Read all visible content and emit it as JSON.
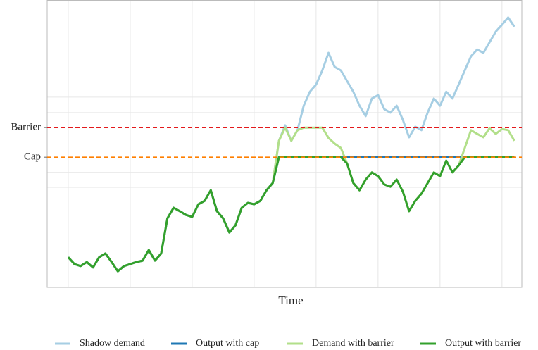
{
  "chart_data": {
    "type": "line",
    "x_label": "Time",
    "x": [
      0,
      2,
      4,
      6,
      8,
      10,
      12,
      14,
      16,
      18,
      20,
      22,
      24,
      26,
      28,
      30,
      32,
      34,
      36,
      38,
      40,
      42,
      44,
      46,
      48,
      50,
      52,
      54,
      56,
      58,
      60,
      62,
      64,
      66,
      68,
      70,
      72,
      74,
      76,
      78,
      80,
      82,
      84,
      86,
      88,
      90,
      92,
      94,
      96,
      98,
      100,
      102,
      104,
      106,
      108,
      110,
      112,
      114,
      116,
      118,
      120,
      122,
      124,
      126,
      128,
      130,
      132,
      134,
      136,
      138,
      140,
      142,
      144
    ],
    "xlim": [
      -6.8,
      146.4
    ],
    "xgrid": [
      0,
      20,
      40,
      60,
      80,
      100,
      120,
      140
    ],
    "ylim": [
      0,
      100
    ],
    "yticks": [
      {
        "value": 55.6,
        "label": "Barrier",
        "color": "#e31a1c"
      },
      {
        "value": 45.3,
        "label": "Cap",
        "color": "#ff7f00"
      }
    ],
    "ygrid": [
      66.2,
      60.8,
      40.0,
      34.8
    ],
    "grid": true,
    "legend": "bottom",
    "series": [
      {
        "name": "Shadow demand",
        "color": "#a6cee3",
        "values": [
          10.5,
          8.1,
          7.4,
          8.8,
          6.9,
          10.5,
          11.8,
          8.8,
          5.6,
          7.4,
          8.1,
          8.8,
          9.3,
          13.0,
          9.3,
          11.8,
          24.0,
          27.7,
          26.5,
          25.2,
          24.5,
          28.9,
          30.1,
          33.8,
          26.5,
          24.0,
          19.1,
          21.6,
          27.7,
          29.4,
          28.9,
          30.1,
          33.8,
          36.3,
          51.0,
          56.4,
          51.0,
          54.7,
          63.2,
          68.1,
          70.6,
          75.5,
          81.6,
          76.7,
          75.5,
          71.8,
          68.1,
          63.2,
          59.6,
          65.7,
          66.9,
          62.0,
          60.8,
          63.2,
          58.3,
          52.2,
          55.9,
          54.7,
          60.8,
          65.7,
          63.2,
          68.1,
          65.7,
          70.6,
          75.5,
          80.4,
          82.8,
          81.6,
          85.3,
          89.0,
          91.4,
          93.9,
          90.7
        ]
      },
      {
        "name": "Output with cap",
        "color": "#1f78b4",
        "values": [
          10.5,
          8.1,
          7.4,
          8.8,
          6.9,
          10.5,
          11.8,
          8.8,
          5.6,
          7.4,
          8.1,
          8.8,
          9.3,
          13.0,
          9.3,
          11.8,
          24.0,
          27.7,
          26.5,
          25.2,
          24.5,
          28.9,
          30.1,
          33.8,
          26.5,
          24.0,
          19.1,
          21.6,
          27.7,
          29.4,
          28.9,
          30.1,
          33.8,
          36.3,
          45.3,
          45.3,
          45.3,
          45.3,
          45.3,
          45.3,
          45.3,
          45.3,
          45.3,
          45.3,
          45.3,
          45.3,
          45.3,
          45.3,
          45.3,
          45.3,
          45.3,
          45.3,
          45.3,
          45.3,
          45.3,
          45.3,
          45.3,
          45.3,
          45.3,
          45.3,
          45.3,
          45.3,
          45.3,
          45.3,
          45.3,
          45.3,
          45.3,
          45.3,
          45.3,
          45.3,
          45.3,
          45.3,
          45.3
        ]
      },
      {
        "name": "Demand with barrier",
        "color": "#b2df8a",
        "values": [
          10.5,
          8.1,
          7.4,
          8.8,
          6.9,
          10.5,
          11.8,
          8.8,
          5.6,
          7.4,
          8.1,
          8.8,
          9.3,
          13.0,
          9.3,
          11.8,
          24.0,
          27.7,
          26.5,
          25.2,
          24.5,
          28.9,
          30.1,
          33.8,
          26.5,
          24.0,
          19.1,
          21.6,
          27.7,
          29.4,
          28.9,
          30.1,
          33.8,
          36.3,
          51.0,
          55.6,
          51.0,
          54.7,
          55.6,
          55.6,
          55.6,
          55.6,
          52.0,
          50.0,
          48.5,
          43.1,
          36.3,
          33.8,
          37.5,
          40.0,
          38.7,
          35.8,
          35.0,
          37.5,
          33.3,
          26.5,
          30.1,
          32.6,
          36.3,
          40.0,
          38.7,
          44.1,
          40.0,
          42.4,
          48.5,
          54.7,
          53.4,
          52.2,
          55.4,
          53.4,
          55.1,
          54.7,
          51.0
        ]
      },
      {
        "name": "Output with barrier",
        "color": "#33a02c",
        "values": [
          10.5,
          8.1,
          7.4,
          8.8,
          6.9,
          10.5,
          11.8,
          8.8,
          5.6,
          7.4,
          8.1,
          8.8,
          9.3,
          13.0,
          9.3,
          11.8,
          24.0,
          27.7,
          26.5,
          25.2,
          24.5,
          28.9,
          30.1,
          33.8,
          26.5,
          24.0,
          19.1,
          21.6,
          27.7,
          29.4,
          28.9,
          30.1,
          33.8,
          36.3,
          45.3,
          45.3,
          45.3,
          45.3,
          45.3,
          45.3,
          45.3,
          45.3,
          45.3,
          45.3,
          45.3,
          43.1,
          36.3,
          33.8,
          37.5,
          40.0,
          38.7,
          35.8,
          35.0,
          37.5,
          33.3,
          26.5,
          30.1,
          32.6,
          36.3,
          40.0,
          38.7,
          44.1,
          40.0,
          42.4,
          45.3,
          45.3,
          45.3,
          45.3,
          45.3,
          45.3,
          45.3,
          45.3,
          45.3
        ]
      }
    ]
  }
}
